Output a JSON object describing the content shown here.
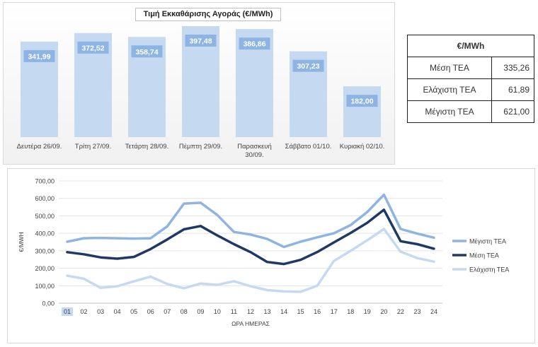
{
  "bar_chart": {
    "title": "Τιμή Εκκαθάρισης Αγοράς (€/MWh)"
  },
  "stats": {
    "header": "€/MWh",
    "rows": [
      {
        "label": "Μέση ΤΕΑ",
        "value": "335,26"
      },
      {
        "label": "Ελάχιστη ΤΕΑ",
        "value": "61,89"
      },
      {
        "label": "Μέγιστη ΤΕΑ",
        "value": "621,00"
      }
    ]
  },
  "line_chart": {
    "ylabel": "€/MWH",
    "xlabel": "ΩΡΑ ΗΜΕΡΑΣ"
  },
  "colors": {
    "bar_fill": "#c5d9f1",
    "bar_label_bg": "#8eb4e3",
    "max_series": "#8eb4e3",
    "mean_series": "#1f3864",
    "min_series": "#c5d9f1"
  },
  "chart_data": [
    {
      "type": "bar",
      "title": "Τιμή Εκκαθάρισης Αγοράς (€/MWh)",
      "categories": [
        "Δευτέρα 26/09.",
        "Τρίτη 27/09.",
        "Τετάρτη 28/09.",
        "Πέμπτη 29/09.",
        "Παρασκευή 30/09.",
        "Σάββατο 01/10.",
        "Κυριακή 02/10."
      ],
      "values": [
        341.99,
        372.52,
        358.74,
        397.48,
        386.86,
        307.23,
        182.0
      ],
      "value_labels": [
        "341,99",
        "372,52",
        "358,74",
        "397,48",
        "386,86",
        "307,23",
        "182,00"
      ],
      "ylim": [
        0,
        410
      ],
      "grid": false
    },
    {
      "type": "line",
      "xlabel": "ΩΡΑ ΗΜΕΡΑΣ",
      "ylabel": "€/MWH",
      "x": [
        "01",
        "02",
        "03",
        "04",
        "05",
        "06",
        "07",
        "08",
        "09",
        "10",
        "11",
        "12",
        "13",
        "14",
        "15",
        "16",
        "17",
        "18",
        "19",
        "20",
        "22",
        "23",
        "24"
      ],
      "ylim": [
        0,
        700
      ],
      "yticks": [
        "0,00",
        "100,00",
        "200,00",
        "300,00",
        "400,00",
        "500,00",
        "600,00",
        "700,00"
      ],
      "grid": true,
      "legend_position": "right",
      "series": [
        {
          "name": "Μέγιστη ΤΕΑ",
          "values": [
            352,
            372,
            374,
            372,
            370,
            372,
            440,
            570,
            575,
            505,
            408,
            393,
            368,
            322,
            352,
            377,
            400,
            447,
            522,
            621,
            425,
            398,
            375
          ]
        },
        {
          "name": "Μέση ΤΕΑ",
          "values": [
            292,
            280,
            262,
            255,
            265,
            310,
            365,
            423,
            442,
            388,
            338,
            292,
            236,
            224,
            248,
            293,
            348,
            402,
            460,
            535,
            355,
            338,
            312
          ]
        },
        {
          "name": "Ελάχιστη ΤΕΑ",
          "values": [
            157,
            140,
            88,
            97,
            125,
            152,
            110,
            85,
            113,
            105,
            126,
            97,
            75,
            67,
            65,
            100,
            242,
            300,
            360,
            425,
            295,
            258,
            238
          ]
        }
      ]
    }
  ]
}
